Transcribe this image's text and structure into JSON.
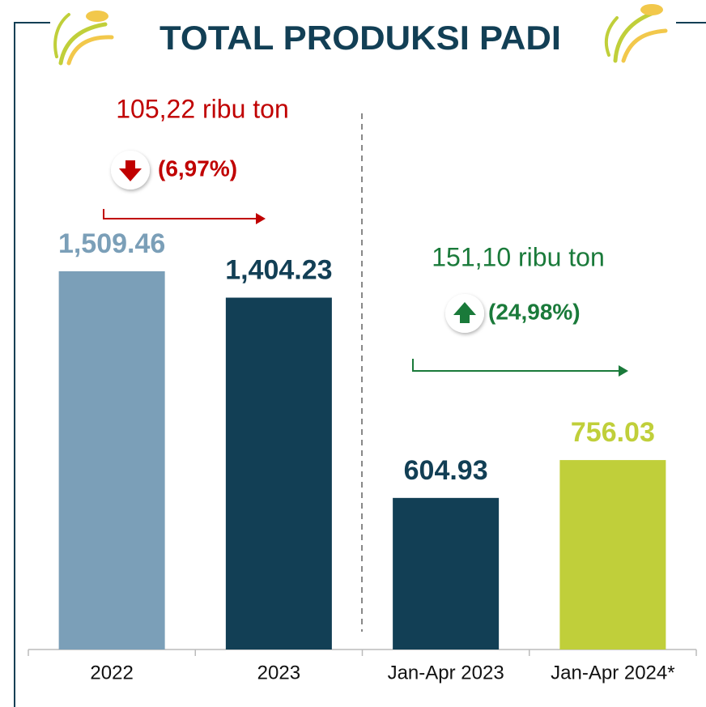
{
  "chart_data": {
    "type": "bar",
    "title": "TOTAL PRODUKSI PADI",
    "categories": [
      "2022",
      "2023",
      "Jan-Apr 2023",
      "Jan-Apr 2024*"
    ],
    "values": [
      1509.46,
      1404.23,
      604.93,
      756.03
    ],
    "value_labels": [
      "1,509.46",
      "1,404.23",
      "604.93",
      "756.03"
    ],
    "colors": [
      "#7b9fb8",
      "#123f55",
      "#123f55",
      "#c0cf3a"
    ],
    "annotations": [
      {
        "text": "105,22 ribu ton",
        "change": "(6,97%)",
        "color": "#c00000"
      },
      {
        "text": "151,10 ribu ton",
        "change": "(24,98%)",
        "color": "#1a7a3a"
      }
    ]
  }
}
